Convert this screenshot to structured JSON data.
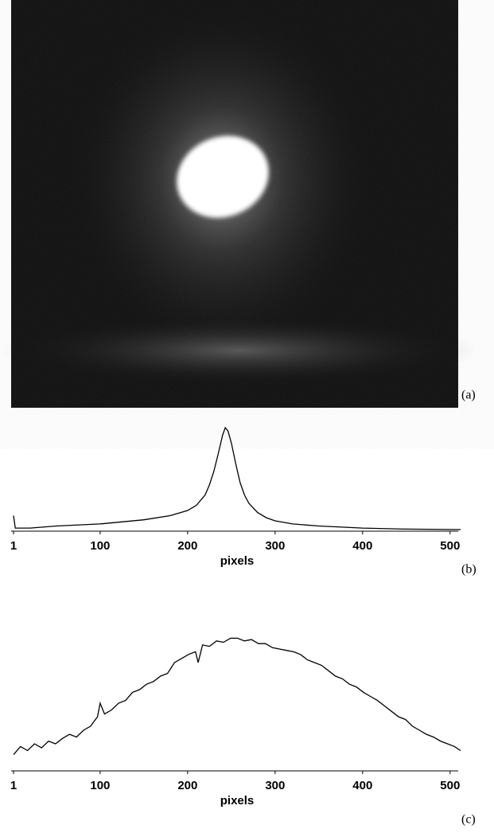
{
  "chart_data": [
    {
      "type": "image",
      "panel_label": "(a)"
    },
    {
      "type": "line",
      "panel_label": "(b)",
      "xlabel": "pixels",
      "color": "#000000",
      "xlim": [
        1,
        512
      ],
      "ylim": [
        0,
        1
      ],
      "xticks": [
        1,
        100,
        200,
        300,
        400,
        500
      ],
      "x": [
        1,
        3,
        20,
        50,
        100,
        150,
        180,
        200,
        210,
        220,
        225,
        230,
        235,
        240,
        243,
        246,
        250,
        255,
        260,
        265,
        270,
        280,
        290,
        300,
        320,
        350,
        400,
        450,
        512
      ],
      "values": [
        0.15,
        0.03,
        0.03,
        0.05,
        0.07,
        0.11,
        0.15,
        0.2,
        0.25,
        0.35,
        0.45,
        0.58,
        0.75,
        0.93,
        1.0,
        0.97,
        0.85,
        0.65,
        0.47,
        0.35,
        0.27,
        0.18,
        0.13,
        0.1,
        0.07,
        0.05,
        0.03,
        0.02,
        0.015
      ]
    },
    {
      "type": "line",
      "panel_label": "(c)",
      "xlabel": "pixels",
      "color": "#000000",
      "xlim": [
        1,
        512
      ],
      "ylim": [
        0,
        1
      ],
      "xticks": [
        1,
        100,
        200,
        300,
        400,
        500
      ],
      "x": [
        1,
        9,
        17,
        25,
        33,
        41,
        49,
        57,
        65,
        73,
        81,
        89,
        97,
        100,
        105,
        113,
        121,
        129,
        137,
        145,
        153,
        161,
        169,
        177,
        185,
        193,
        201,
        209,
        212,
        217,
        225,
        233,
        241,
        249,
        257,
        265,
        273,
        281,
        289,
        297,
        305,
        313,
        321,
        329,
        337,
        345,
        353,
        361,
        369,
        377,
        385,
        393,
        401,
        409,
        417,
        425,
        433,
        441,
        449,
        457,
        465,
        473,
        481,
        489,
        497,
        505,
        512
      ],
      "values": [
        0.12,
        0.18,
        0.15,
        0.2,
        0.17,
        0.22,
        0.2,
        0.24,
        0.27,
        0.25,
        0.3,
        0.33,
        0.4,
        0.5,
        0.42,
        0.45,
        0.5,
        0.52,
        0.58,
        0.6,
        0.64,
        0.66,
        0.7,
        0.72,
        0.8,
        0.83,
        0.86,
        0.88,
        0.8,
        0.93,
        0.92,
        0.96,
        0.95,
        0.98,
        0.98,
        0.96,
        0.97,
        0.94,
        0.94,
        0.91,
        0.9,
        0.89,
        0.88,
        0.86,
        0.82,
        0.8,
        0.78,
        0.74,
        0.7,
        0.68,
        0.64,
        0.62,
        0.58,
        0.55,
        0.52,
        0.48,
        0.44,
        0.4,
        0.38,
        0.33,
        0.3,
        0.27,
        0.25,
        0.22,
        0.2,
        0.18,
        0.15
      ]
    }
  ]
}
